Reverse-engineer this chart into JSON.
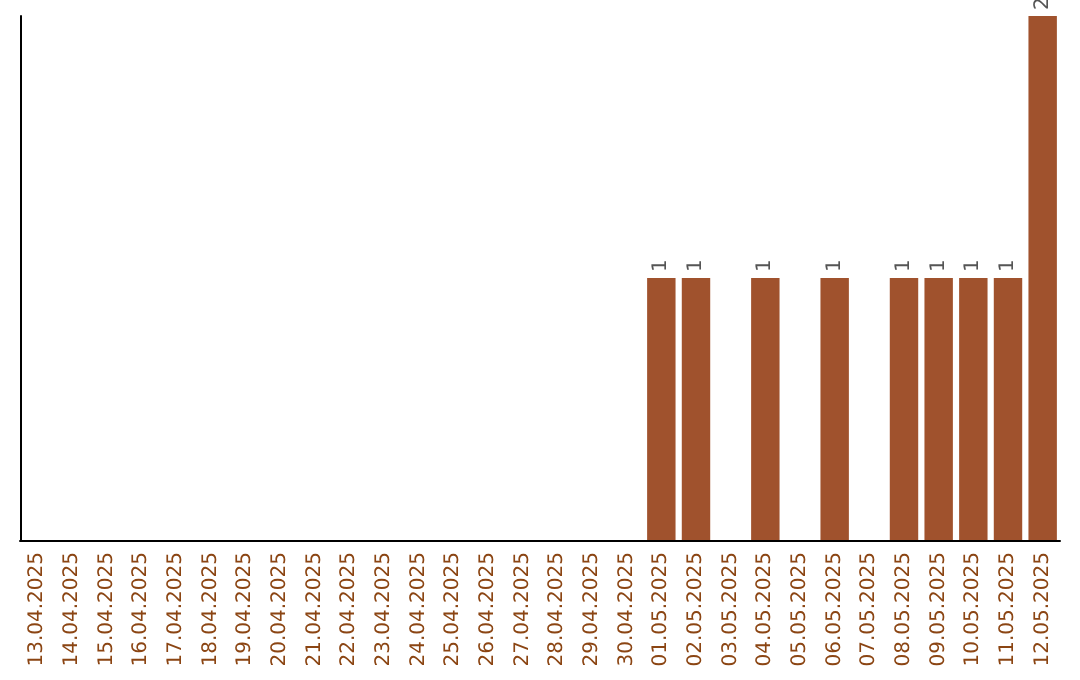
{
  "chart_data": {
    "type": "bar",
    "categories": [
      "13.04.2025",
      "14.04.2025",
      "15.04.2025",
      "16.04.2025",
      "17.04.2025",
      "18.04.2025",
      "19.04.2025",
      "20.04.2025",
      "21.04.2025",
      "22.04.2025",
      "23.04.2025",
      "24.04.2025",
      "25.04.2025",
      "26.04.2025",
      "27.04.2025",
      "28.04.2025",
      "29.04.2025",
      "30.04.2025",
      "01.05.2025",
      "02.05.2025",
      "03.05.2025",
      "04.05.2025",
      "05.05.2025",
      "06.05.2025",
      "07.05.2025",
      "08.05.2025",
      "09.05.2025",
      "10.05.2025",
      "11.05.2025",
      "12.05.2025"
    ],
    "values": [
      null,
      null,
      null,
      null,
      null,
      null,
      null,
      null,
      null,
      null,
      null,
      null,
      null,
      null,
      null,
      null,
      null,
      null,
      1,
      1,
      null,
      1,
      null,
      1,
      null,
      1,
      1,
      1,
      1,
      2
    ],
    "data_labels": true,
    "color": "#a0522d",
    "tick_labels": "x",
    "grid": false
  }
}
